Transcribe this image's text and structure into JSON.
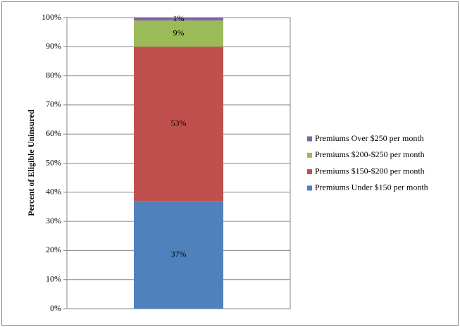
{
  "chart_data": {
    "type": "stacked_bar",
    "y_label": "Percent of Eligible Uninsured",
    "categories": [
      null
    ],
    "series": [
      {
        "name": "Premiums Under $150 per month",
        "color": "#4f81bd",
        "values": [
          37
        ],
        "value_labels": [
          "37%"
        ]
      },
      {
        "name": "Premiums $150-$200 per month",
        "color": "#c0504d",
        "values": [
          53
        ],
        "value_labels": [
          "53%"
        ]
      },
      {
        "name": "Premiums $200-$250 per month",
        "color": "#9bbb59",
        "values": [
          9
        ],
        "value_labels": [
          "9%"
        ]
      },
      {
        "name": "Premiums Over $250 per month",
        "color": "#8064a2",
        "values": [
          1
        ],
        "value_labels": [
          "1%"
        ]
      }
    ],
    "ylim": [
      0,
      100
    ],
    "yticks": [
      {
        "value": 0,
        "label": "0%"
      },
      {
        "value": 10,
        "label": "10%"
      },
      {
        "value": 20,
        "label": "20%"
      },
      {
        "value": 30,
        "label": "30%"
      },
      {
        "value": 40,
        "label": "40%"
      },
      {
        "value": 50,
        "label": "50%"
      },
      {
        "value": 60,
        "label": "60%"
      },
      {
        "value": 70,
        "label": "70%"
      },
      {
        "value": 80,
        "label": "80%"
      },
      {
        "value": 90,
        "label": "90%"
      },
      {
        "value": 100,
        "label": "100%"
      }
    ],
    "grid": true,
    "legend": "right"
  }
}
